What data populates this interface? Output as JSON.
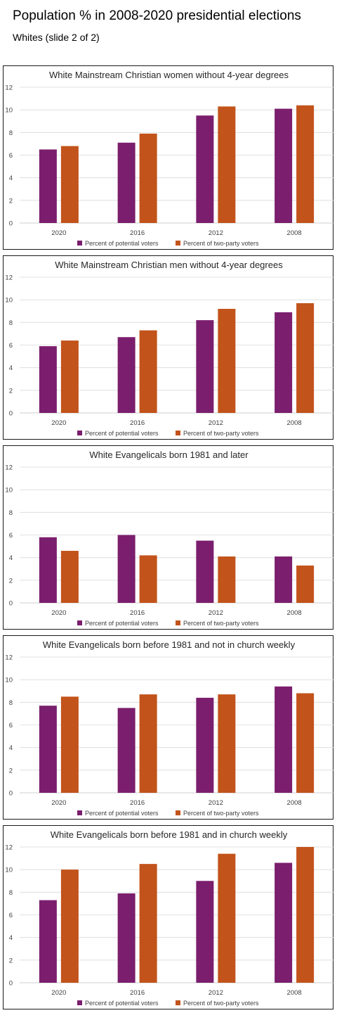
{
  "page": {
    "title": "Population % in 2008-2020 presidential elections",
    "subtitle": "Whites (slide 2 of 2)"
  },
  "colors": {
    "potential": "#7b1e6e",
    "two_party": "#c2531b",
    "grid": "#d9d9d9",
    "axis": "#bfbfbf"
  },
  "chart_data": [
    {
      "type": "bar",
      "title": "White Mainstream Christian women without 4-year degrees",
      "categories": [
        "2020",
        "2016",
        "2012",
        "2008"
      ],
      "series": [
        {
          "name": "Percent of potential voters",
          "values": [
            6.5,
            7.1,
            9.5,
            10.1
          ]
        },
        {
          "name": "Percent of two-party voters",
          "values": [
            6.8,
            7.9,
            10.3,
            10.4
          ]
        }
      ],
      "ylim": [
        0,
        12
      ],
      "yticks": [
        0,
        2,
        4,
        6,
        8,
        10,
        12
      ],
      "grid": true,
      "legend": "bottom"
    },
    {
      "type": "bar",
      "title": "White Mainstream Christian men without 4-year degrees",
      "categories": [
        "2020",
        "2016",
        "2012",
        "2008"
      ],
      "series": [
        {
          "name": "Percent of potential voters",
          "values": [
            5.9,
            6.7,
            8.2,
            8.9
          ]
        },
        {
          "name": "Percent of two-party voters",
          "values": [
            6.4,
            7.3,
            9.2,
            9.7
          ]
        }
      ],
      "ylim": [
        0,
        12
      ],
      "yticks": [
        0,
        2,
        4,
        6,
        8,
        10,
        12
      ],
      "grid": true,
      "legend": "bottom"
    },
    {
      "type": "bar",
      "title": "White Evangelicals born 1981 and later",
      "categories": [
        "2020",
        "2016",
        "2012",
        "2008"
      ],
      "series": [
        {
          "name": "Percent of potential voters",
          "values": [
            5.8,
            6.0,
            5.5,
            4.1
          ]
        },
        {
          "name": "Percent of two-party voters",
          "values": [
            4.6,
            4.2,
            4.1,
            3.3
          ]
        }
      ],
      "ylim": [
        0,
        12
      ],
      "yticks": [
        0,
        2,
        4,
        6,
        8,
        10,
        12
      ],
      "grid": true,
      "legend": "bottom"
    },
    {
      "type": "bar",
      "title": "White Evangelicals born before 1981 and not in church weekly",
      "categories": [
        "2020",
        "2016",
        "2012",
        "2008"
      ],
      "series": [
        {
          "name": "Percent of potential voters",
          "values": [
            7.7,
            7.5,
            8.4,
            9.4
          ]
        },
        {
          "name": "Percent of two-party voters",
          "values": [
            8.5,
            8.7,
            8.7,
            8.8
          ]
        }
      ],
      "ylim": [
        0,
        12
      ],
      "yticks": [
        0,
        2,
        4,
        6,
        8,
        10,
        12
      ],
      "grid": true,
      "legend": "bottom"
    },
    {
      "type": "bar",
      "title": "White Evangelicals born before 1981 and in church weekly",
      "categories": [
        "2020",
        "2016",
        "2012",
        "2008"
      ],
      "series": [
        {
          "name": "Percent of potential voters",
          "values": [
            7.3,
            7.9,
            9.0,
            10.6
          ]
        },
        {
          "name": "Percent of two-party voters",
          "values": [
            10.0,
            10.5,
            11.4,
            12.0
          ]
        }
      ],
      "ylim": [
        0,
        12
      ],
      "yticks": [
        0,
        2,
        4,
        6,
        8,
        10,
        12
      ],
      "grid": true,
      "legend": "bottom"
    }
  ]
}
